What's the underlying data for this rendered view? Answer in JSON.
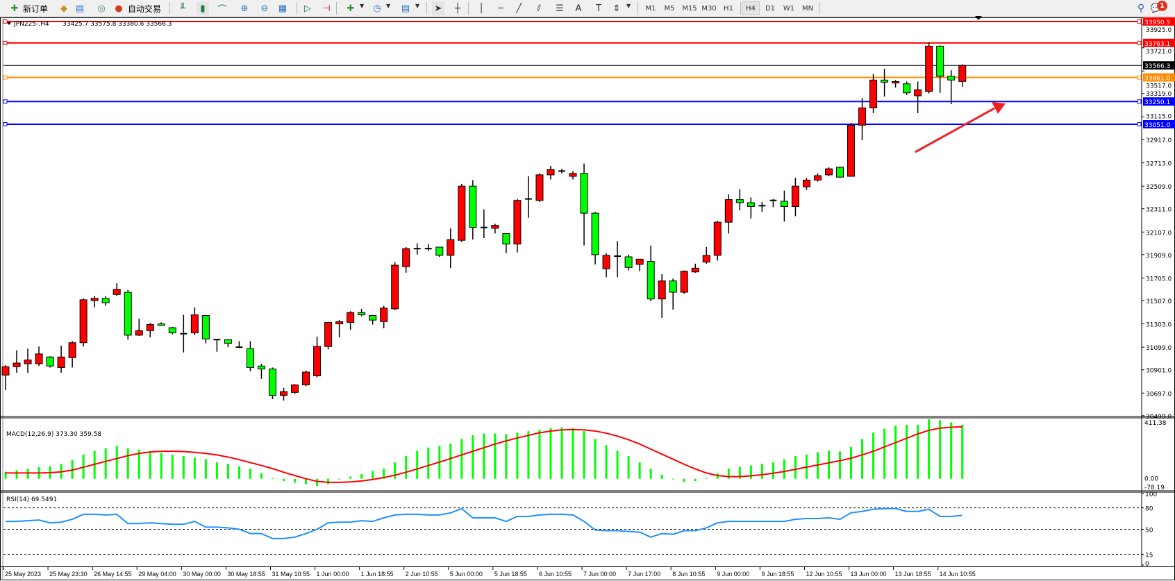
{
  "toolbar": {
    "new_order_label": "新订单",
    "auto_trading_label": "自动交易",
    "icons": [
      "new-order-icon",
      "history-folder-icon",
      "market-watch-icon",
      "signals-icon",
      "auto-trading-icon",
      "bar-chart-icon",
      "candlestick-chart-icon",
      "line-chart-icon",
      "zoom-in-icon",
      "zoom-out-icon",
      "tile-windows-icon",
      "auto-scroll-icon",
      "chart-shift-icon",
      "new-chart-icon",
      "periods-clock-icon",
      "indicators-icon",
      "cursor-icon",
      "crosshair-icon",
      "vertical-line-icon",
      "horizontal-line-icon",
      "trendline-icon",
      "fibonacci-channel-icon",
      "fibonacci-icon",
      "text-icon",
      "text-label-icon",
      "arrows-icon",
      "search-icon",
      "notifications-icon"
    ],
    "timeframes": [
      "M1",
      "M5",
      "M15",
      "M30",
      "H1",
      "H4",
      "D1",
      "W1",
      "MN"
    ],
    "active_timeframe": "H4",
    "notification_count": "1"
  },
  "chart_header": {
    "symbol": "JPN225-,H4",
    "ohlc": "33425.7 33575.8 33380.6 33566.3"
  },
  "chart_data": {
    "type": "candlestick",
    "symbol": "JPN225-",
    "timeframe": "H4",
    "up_color": "#ff0000",
    "down_color": "#00ff00",
    "ylim": [
      30499.0,
      33950.5
    ],
    "price_ticks": [
      "33925.0",
      "33721.0",
      "33517.0",
      "33319.0",
      "33115.0",
      "32917.0",
      "32713.0",
      "32509.0",
      "32311.0",
      "32107.0",
      "31909.0",
      "31705.0",
      "31507.0",
      "31303.0",
      "31099.0",
      "30901.0",
      "30697.0",
      "30499.0"
    ],
    "current_price": "33566.3",
    "horizontal_lines": [
      {
        "price": "33950.5",
        "color": "#ff0000"
      },
      {
        "price": "33763.1",
        "color": "#ff0000"
      },
      {
        "price": "33461.0",
        "color": "#ff8c00"
      },
      {
        "price": "33250.1",
        "color": "#0000ff"
      },
      {
        "price": "33051.0",
        "color": "#0000ff"
      }
    ],
    "annotation_arrow_color": "#ee2222",
    "ohlc_columns": [
      "open",
      "high",
      "low",
      "close"
    ],
    "candles": [
      [
        30855,
        30941,
        30723,
        30928
      ],
      [
        30928,
        31072,
        30875,
        30960
      ],
      [
        30954,
        31086,
        30875,
        30987
      ],
      [
        30954,
        31105,
        30934,
        31040
      ],
      [
        31013,
        31020,
        30921,
        30934
      ],
      [
        30921,
        31112,
        30875,
        31013
      ],
      [
        31007,
        31152,
        30921,
        31138
      ],
      [
        31138,
        31527,
        31105,
        31514
      ],
      [
        31507,
        31547,
        31448,
        31527
      ],
      [
        31527,
        31547,
        31461,
        31488
      ],
      [
        31560,
        31659,
        31547,
        31606
      ],
      [
        31580,
        31600,
        31165,
        31204
      ],
      [
        31204,
        31349,
        31198,
        31244
      ],
      [
        31244,
        31310,
        31185,
        31297
      ],
      [
        31303,
        31316,
        31290,
        31290
      ],
      [
        31270,
        31277,
        31211,
        31224
      ],
      [
        31217,
        31382,
        31053,
        31217
      ],
      [
        31224,
        31448,
        31204,
        31382
      ],
      [
        31376,
        31380,
        31132,
        31171
      ],
      [
        31165,
        31171,
        31059,
        31165
      ],
      [
        31165,
        31168,
        31099,
        31132
      ],
      [
        31099,
        31152,
        31092,
        31099
      ],
      [
        31086,
        31152,
        30888,
        30921
      ],
      [
        30934,
        30954,
        30822,
        30908
      ],
      [
        30908,
        30921,
        30644,
        30677
      ],
      [
        30677,
        30743,
        30631,
        30710
      ],
      [
        30703,
        30775,
        30690,
        30769
      ],
      [
        30769,
        30894,
        30756,
        30881
      ],
      [
        30848,
        31191,
        30835,
        31105
      ],
      [
        31105,
        31320,
        31079,
        31316
      ],
      [
        31303,
        31336,
        31185,
        31323
      ],
      [
        31316,
        31415,
        31250,
        31402
      ],
      [
        31402,
        31435,
        31369,
        31382
      ],
      [
        31376,
        31382,
        31297,
        31336
      ],
      [
        31323,
        31461,
        31264,
        31441
      ],
      [
        31435,
        31844,
        31422,
        31817
      ],
      [
        31804,
        31975,
        31751,
        31962
      ],
      [
        31962,
        32008,
        31909,
        31962
      ],
      [
        31962,
        32002,
        31942,
        31962
      ],
      [
        31975,
        31978,
        31890,
        31903
      ],
      [
        31903,
        32140,
        31791,
        32041
      ],
      [
        32035,
        32529,
        32021,
        32509
      ],
      [
        32509,
        32562,
        32041,
        32147
      ],
      [
        32147,
        32305,
        32054,
        32147
      ],
      [
        32140,
        32180,
        32094,
        32166
      ],
      [
        32094,
        32094,
        31923,
        32002
      ],
      [
        32002,
        32397,
        31929,
        32384
      ],
      [
        32397,
        32595,
        32232,
        32397
      ],
      [
        32384,
        32621,
        32371,
        32608
      ],
      [
        32608,
        32687,
        32568,
        32654
      ],
      [
        32641,
        32661,
        32621,
        32641
      ],
      [
        32595,
        32641,
        32568,
        32621
      ],
      [
        32621,
        32707,
        31989,
        32272
      ],
      [
        32272,
        32285,
        31823,
        31909
      ],
      [
        31785,
        31923,
        31712,
        31903
      ],
      [
        31896,
        32028,
        31712,
        31896
      ],
      [
        31890,
        31909,
        31771,
        31797
      ],
      [
        31824,
        31870,
        31764,
        31870
      ],
      [
        31850,
        31989,
        31501,
        31521
      ],
      [
        31521,
        31738,
        31356,
        31679
      ],
      [
        31679,
        31699,
        31428,
        31580
      ],
      [
        31580,
        31771,
        31567,
        31764
      ],
      [
        31758,
        31830,
        31751,
        31791
      ],
      [
        31844,
        31975,
        31830,
        31903
      ],
      [
        31903,
        32206,
        31857,
        32193
      ],
      [
        32193,
        32437,
        32094,
        32391
      ],
      [
        32391,
        32483,
        32298,
        32364
      ],
      [
        32364,
        32410,
        32226,
        32331
      ],
      [
        32338,
        32371,
        32285,
        32338
      ],
      [
        32384,
        32397,
        32325,
        32384
      ],
      [
        32377,
        32470,
        32199,
        32331
      ],
      [
        32331,
        32582,
        32246,
        32509
      ],
      [
        32503,
        32582,
        32476,
        32562
      ],
      [
        32562,
        32621,
        32549,
        32601
      ],
      [
        32608,
        32674,
        32595,
        32661
      ],
      [
        32674,
        32680,
        32582,
        32588
      ],
      [
        32595,
        33063,
        32595,
        33043
      ],
      [
        33043,
        33280,
        32911,
        33194
      ],
      [
        33194,
        33491,
        33148,
        33438
      ],
      [
        33438,
        33537,
        33293,
        33419
      ],
      [
        33412,
        33438,
        33372,
        33425
      ],
      [
        33405,
        33425,
        33306,
        33326
      ],
      [
        33300,
        33425,
        33148,
        33353
      ],
      [
        33339,
        33768,
        33320,
        33735
      ],
      [
        33735,
        33742,
        33326,
        33471
      ],
      [
        33471,
        33524,
        33227,
        33438
      ],
      [
        33425.7,
        33575.8,
        33380.6,
        33566.3
      ]
    ],
    "time_labels": [
      "25 May 2023",
      "25 May 23:30",
      "26 May 14:55",
      "29 May 04:00",
      "30 May 00:00",
      "30 May 18:55",
      "31 May 10:55",
      "1 Jun 00:00",
      "1 Jun 18:55",
      "2 Jun 10:55",
      "5 Jun 00:00",
      "5 Jun 18:55",
      "6 Jun 10:55",
      "7 Jun 00:00",
      "7 Jun 17:00",
      "8 Jun 10:55",
      "9 Jun 00:00",
      "9 Jun 18:55",
      "12 Jun 10:55",
      "13 Jun 00:00",
      "13 Jun 18:55",
      "14 Jun 10:55"
    ],
    "bars_per_time_label": 4
  },
  "macd": {
    "label": "MACD(12,26,9) 373.30 359.58",
    "scale_max": "411.38",
    "scale_zero": "0.00",
    "scale_min": "-78.19",
    "histogram_color": "#00ff00",
    "signal_color": "#ff0000",
    "histogram": [
      49,
      59,
      70,
      81,
      86,
      103,
      130,
      167,
      194,
      211,
      227,
      211,
      200,
      189,
      178,
      167,
      157,
      146,
      135,
      113,
      103,
      86,
      70,
      38,
      5,
      -16,
      -27,
      -38,
      -49,
      -38,
      -5,
      16,
      32,
      54,
      70,
      113,
      157,
      194,
      216,
      227,
      243,
      275,
      302,
      313,
      313,
      308,
      319,
      329,
      340,
      351,
      356,
      351,
      329,
      275,
      232,
      194,
      157,
      113,
      70,
      27,
      -5,
      -22,
      -16,
      5,
      38,
      70,
      81,
      92,
      103,
      113,
      135,
      157,
      167,
      184,
      194,
      189,
      221,
      275,
      319,
      346,
      367,
      373,
      373,
      411,
      405,
      390,
      373.3
    ],
    "signal": [
      40,
      40,
      40,
      40,
      42,
      48,
      60,
      80,
      100,
      120,
      140,
      160,
      175,
      185,
      190,
      190,
      188,
      183,
      175,
      165,
      150,
      132,
      112,
      92,
      70,
      45,
      22,
      0,
      -18,
      -25,
      -25,
      -22,
      -15,
      -5,
      8,
      25,
      45,
      68,
      92,
      115,
      140,
      165,
      190,
      215,
      240,
      262,
      282,
      300,
      318,
      330,
      338,
      340,
      338,
      330,
      315,
      295,
      270,
      240,
      205,
      170,
      135,
      100,
      68,
      40,
      22,
      15,
      15,
      20,
      28,
      38,
      50,
      65,
      80,
      95,
      110,
      125,
      142,
      165,
      190,
      220,
      250,
      280,
      310,
      335,
      350,
      356,
      359.58
    ]
  },
  "rsi": {
    "label": "RSI(14) 69.5491",
    "levels": [
      "100",
      "80",
      "50",
      "15",
      "0"
    ],
    "line_color": "#1e90ff",
    "values": [
      61,
      61,
      62,
      63,
      59,
      60,
      64,
      71,
      71,
      70,
      71,
      58,
      58,
      59,
      58,
      57,
      57,
      61,
      53,
      53,
      52,
      50,
      44,
      44,
      37,
      37,
      39,
      44,
      50,
      59,
      60,
      60,
      62,
      61,
      66,
      70,
      71,
      71,
      70,
      70,
      73,
      79,
      66,
      66,
      66,
      61,
      68,
      68,
      70,
      71,
      71,
      70,
      61,
      49,
      48,
      48,
      47,
      46,
      39,
      44,
      43,
      48,
      48,
      52,
      59,
      61,
      61,
      61,
      61,
      61,
      61,
      64,
      65,
      65,
      66,
      64,
      73,
      75,
      78,
      79,
      79,
      75,
      75,
      78,
      68,
      68,
      69.5491
    ]
  }
}
